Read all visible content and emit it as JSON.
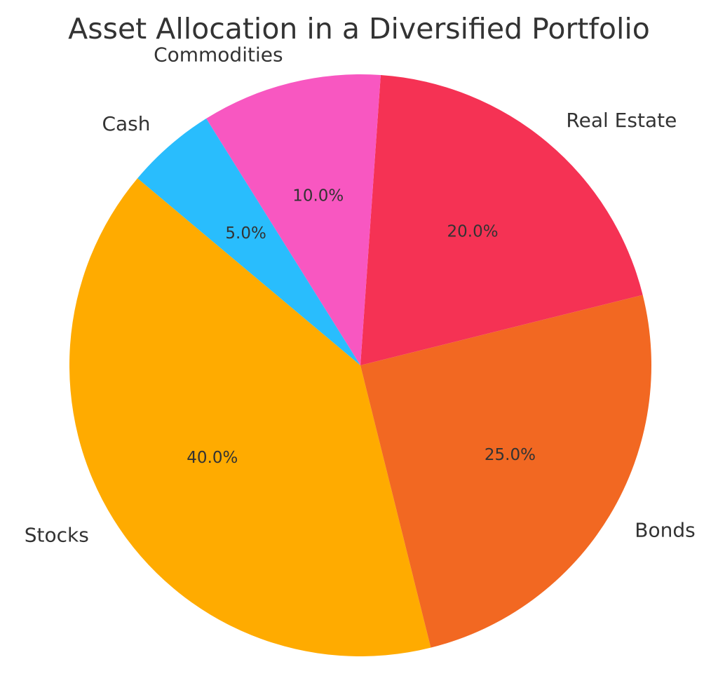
{
  "chart_data": {
    "type": "pie",
    "title": "Asset Allocation in a Diversified Portfolio",
    "categories": [
      "Stocks",
      "Bonds",
      "Real Estate",
      "Commodities",
      "Cash"
    ],
    "values": [
      40.0,
      25.0,
      20.0,
      10.0,
      5.0
    ],
    "value_labels": [
      "40.0%",
      "25.0%",
      "20.0%",
      "10.0%",
      "5.0%"
    ],
    "colors": [
      "#ffab00",
      "#f26822",
      "#f53254",
      "#f857c1",
      "#29bdfd"
    ],
    "start_angle_deg": 140,
    "direction": "counterclockwise",
    "legend": "none"
  }
}
